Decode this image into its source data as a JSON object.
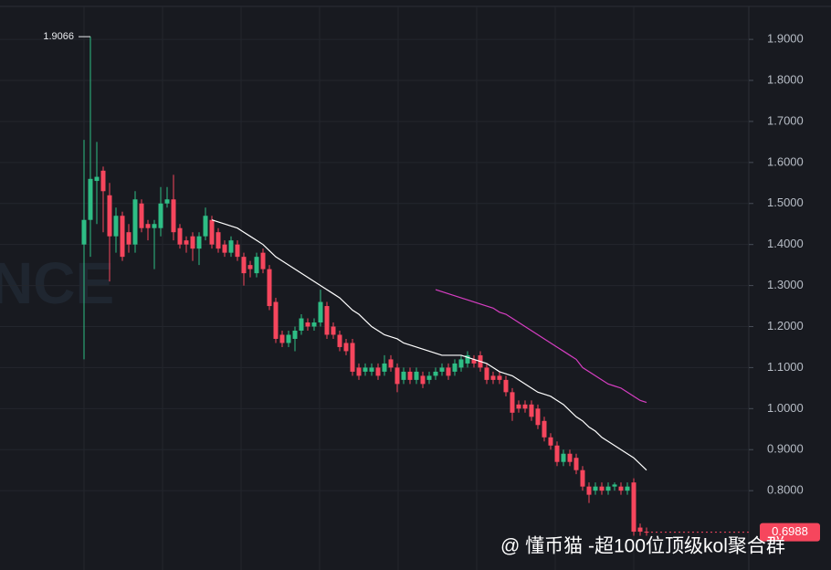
{
  "chart_data": {
    "type": "candlestick",
    "ylim": [
      0.64,
      1.996
    ],
    "yticks": [
      {
        "value": 0.8,
        "label": "0.8000"
      },
      {
        "value": 0.9,
        "label": "0.9000"
      },
      {
        "value": 1.0,
        "label": "1.0000"
      },
      {
        "value": 1.1,
        "label": "1.1000"
      },
      {
        "value": 1.2,
        "label": "1.2000"
      },
      {
        "value": 1.3,
        "label": "1.3000"
      },
      {
        "value": 1.4,
        "label": "1.4000"
      },
      {
        "value": 1.5,
        "label": "1.5000"
      },
      {
        "value": 1.6,
        "label": "1.6000"
      },
      {
        "value": 1.7,
        "label": "1.7000"
      },
      {
        "value": 1.8,
        "label": "1.8000"
      },
      {
        "value": 1.9,
        "label": "1.9000"
      }
    ],
    "grid": true,
    "up_color": "#2ebd85",
    "down_color": "#f6465d",
    "candles": {
      "open": [
        1.4,
        1.46,
        1.555,
        1.58,
        1.52,
        1.42,
        1.47,
        1.43,
        1.4,
        1.5,
        1.45,
        1.44,
        1.44,
        1.5,
        1.51,
        1.44,
        1.41,
        1.42,
        1.39,
        1.42,
        1.46,
        1.43,
        1.4,
        1.38,
        1.4,
        1.37,
        1.35,
        1.33,
        1.38,
        1.34,
        1.26,
        1.18,
        1.16,
        1.17,
        1.19,
        1.21,
        1.2,
        1.21,
        1.25,
        1.2,
        1.18,
        1.16,
        1.16,
        1.1,
        1.09,
        1.09,
        1.1,
        1.09,
        1.12,
        1.1,
        1.07,
        1.09,
        1.07,
        1.08,
        1.07,
        1.08,
        1.09,
        1.1,
        1.09,
        1.1,
        1.11,
        1.12,
        1.13,
        1.1,
        1.08,
        1.08,
        1.07,
        1.04,
        1.01,
        1.01,
        1.01,
        1.0,
        0.97,
        0.93,
        0.91,
        0.87,
        0.89,
        0.88,
        0.85,
        0.81,
        0.8,
        0.81,
        0.8,
        0.81,
        0.81,
        0.8,
        0.82,
        0.71,
        0.7
      ],
      "high": [
        1.655,
        1.9066,
        1.65,
        1.59,
        1.55,
        1.49,
        1.48,
        1.45,
        1.53,
        1.51,
        1.46,
        1.46,
        1.54,
        1.54,
        1.57,
        1.45,
        1.42,
        1.43,
        1.43,
        1.49,
        1.47,
        1.44,
        1.41,
        1.42,
        1.41,
        1.38,
        1.36,
        1.38,
        1.39,
        1.35,
        1.27,
        1.19,
        1.19,
        1.2,
        1.23,
        1.22,
        1.22,
        1.29,
        1.26,
        1.21,
        1.19,
        1.17,
        1.17,
        1.11,
        1.11,
        1.11,
        1.11,
        1.13,
        1.13,
        1.11,
        1.1,
        1.1,
        1.1,
        1.09,
        1.09,
        1.1,
        1.11,
        1.11,
        1.12,
        1.13,
        1.14,
        1.13,
        1.14,
        1.11,
        1.09,
        1.09,
        1.08,
        1.05,
        1.02,
        1.02,
        1.02,
        1.01,
        0.98,
        0.94,
        0.92,
        0.9,
        0.9,
        0.89,
        0.86,
        0.82,
        0.82,
        0.82,
        0.82,
        0.82,
        0.82,
        0.82,
        0.83,
        0.72,
        0.71
      ],
      "low": [
        1.12,
        1.37,
        1.45,
        1.43,
        1.31,
        1.38,
        1.36,
        1.38,
        1.38,
        1.43,
        1.41,
        1.34,
        1.42,
        1.49,
        1.41,
        1.39,
        1.38,
        1.36,
        1.35,
        1.41,
        1.39,
        1.38,
        1.37,
        1.37,
        1.36,
        1.3,
        1.32,
        1.32,
        1.33,
        1.24,
        1.16,
        1.15,
        1.15,
        1.14,
        1.18,
        1.19,
        1.19,
        1.2,
        1.17,
        1.17,
        1.14,
        1.13,
        1.08,
        1.07,
        1.08,
        1.08,
        1.07,
        1.08,
        1.09,
        1.04,
        1.06,
        1.06,
        1.06,
        1.05,
        1.06,
        1.07,
        1.08,
        1.07,
        1.08,
        1.09,
        1.1,
        1.1,
        1.09,
        1.06,
        1.06,
        1.06,
        1.03,
        0.97,
        0.99,
        0.99,
        0.97,
        0.95,
        0.92,
        0.9,
        0.86,
        0.86,
        0.86,
        0.84,
        0.8,
        0.77,
        0.79,
        0.79,
        0.79,
        0.8,
        0.79,
        0.79,
        0.69,
        0.69,
        0.69
      ],
      "close": [
        1.46,
        1.56,
        1.565,
        1.53,
        1.42,
        1.47,
        1.37,
        1.4,
        1.51,
        1.44,
        1.44,
        1.45,
        1.5,
        1.51,
        1.43,
        1.4,
        1.4,
        1.39,
        1.42,
        1.47,
        1.4,
        1.39,
        1.38,
        1.41,
        1.37,
        1.33,
        1.34,
        1.37,
        1.34,
        1.25,
        1.17,
        1.16,
        1.18,
        1.19,
        1.22,
        1.2,
        1.21,
        1.26,
        1.18,
        1.18,
        1.15,
        1.14,
        1.09,
        1.08,
        1.1,
        1.1,
        1.08,
        1.11,
        1.1,
        1.06,
        1.09,
        1.07,
        1.09,
        1.06,
        1.08,
        1.09,
        1.1,
        1.08,
        1.11,
        1.12,
        1.13,
        1.11,
        1.1,
        1.07,
        1.07,
        1.07,
        1.04,
        0.99,
        1.0,
        1.0,
        0.98,
        0.96,
        0.93,
        0.91,
        0.87,
        0.89,
        0.87,
        0.85,
        0.81,
        0.79,
        0.81,
        0.8,
        0.81,
        0.815,
        0.8,
        0.81,
        0.7,
        0.7,
        0.6988
      ]
    },
    "lines": [
      {
        "color": "#ffffff",
        "values": [
          null,
          null,
          null,
          null,
          null,
          null,
          null,
          null,
          null,
          null,
          null,
          null,
          null,
          null,
          null,
          null,
          null,
          null,
          null,
          null,
          1.46,
          1.455,
          1.45,
          1.445,
          1.44,
          1.43,
          1.42,
          1.41,
          1.4,
          1.385,
          1.37,
          1.36,
          1.35,
          1.34,
          1.33,
          1.32,
          1.31,
          1.3,
          1.29,
          1.28,
          1.27,
          1.255,
          1.24,
          1.23,
          1.215,
          1.2,
          1.19,
          1.18,
          1.175,
          1.17,
          1.16,
          1.155,
          1.15,
          1.145,
          1.14,
          1.135,
          1.13,
          1.13,
          1.13,
          1.13,
          1.125,
          1.12,
          1.115,
          1.11,
          1.1,
          1.09,
          1.085,
          1.08,
          1.07,
          1.06,
          1.05,
          1.04,
          1.035,
          1.03,
          1.02,
          1.01,
          0.995,
          0.98,
          0.97,
          0.955,
          0.945,
          0.93,
          0.92,
          0.91,
          0.9,
          0.89,
          0.88,
          0.865,
          0.85
        ]
      },
      {
        "color": "#d63ec2",
        "values": [
          null,
          null,
          null,
          null,
          null,
          null,
          null,
          null,
          null,
          null,
          null,
          null,
          null,
          null,
          null,
          null,
          null,
          null,
          null,
          null,
          null,
          null,
          null,
          null,
          null,
          null,
          null,
          null,
          null,
          null,
          null,
          null,
          null,
          null,
          null,
          null,
          null,
          null,
          null,
          null,
          null,
          null,
          null,
          null,
          null,
          null,
          null,
          null,
          null,
          null,
          null,
          null,
          null,
          null,
          null,
          1.29,
          1.285,
          1.28,
          1.275,
          1.27,
          1.265,
          1.26,
          1.255,
          1.25,
          1.245,
          1.235,
          1.23,
          1.22,
          1.21,
          1.2,
          1.19,
          1.18,
          1.17,
          1.16,
          1.15,
          1.14,
          1.13,
          1.12,
          1.1,
          1.09,
          1.08,
          1.07,
          1.06,
          1.055,
          1.05,
          1.04,
          1.03,
          1.02,
          1.015
        ]
      }
    ],
    "watermarks": [
      "NCE",
      "@ 懂币猫 -超100位顶级kol聚合群"
    ]
  }
}
